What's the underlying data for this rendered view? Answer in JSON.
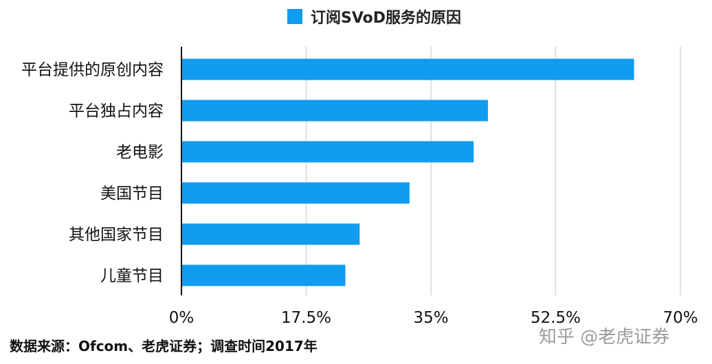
{
  "chart_data": {
    "type": "bar",
    "orientation": "horizontal",
    "categories": [
      "平台提供的原创内容",
      "平台独占内容",
      "老电影",
      "美国节目",
      "其他国家节目",
      "儿童节目"
    ],
    "series": [
      {
        "name": "订阅SVoD服务的原因",
        "values": [
          63.5,
          43,
          41,
          32,
          25,
          23
        ]
      }
    ],
    "xlim": [
      0,
      70
    ],
    "xticks": [
      0,
      17.5,
      35,
      52.5,
      70
    ],
    "xtick_labels": [
      "0%",
      "17.5%",
      "35%",
      "52.5%",
      "70%"
    ],
    "grid": true,
    "legend_position": "top-center",
    "bar_color": "#109cf0",
    "grid_color": "#d6d6d6"
  },
  "footer": {
    "source": "数据来源：Ofcom、老虎证券；调查时间2017年",
    "watermark": "知乎 @老虎证券"
  }
}
